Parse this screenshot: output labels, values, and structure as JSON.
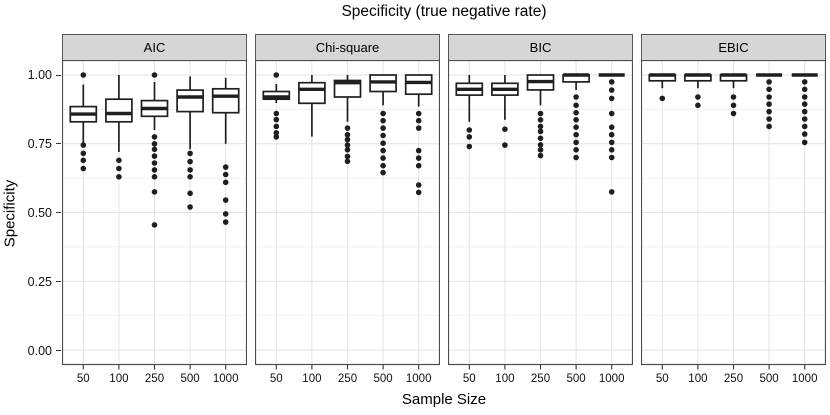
{
  "title": "Specificity (true negative rate)",
  "colors": {
    "box": "#1f1f1f",
    "panel_border": "#4d4d4d",
    "grid_major": "#e2e2e2",
    "grid_minor": "#f1f1f1",
    "strip_fill": "#d6d6d6",
    "strip_border": "#565656",
    "tick_mark": "#333333",
    "text": "#000000"
  },
  "chart_data": {
    "type": "boxplot",
    "faceted": true,
    "title": "Specificity (true negative rate)",
    "xlabel": "Sample Size",
    "ylabel": "Specificity",
    "ylim": [
      0,
      1
    ],
    "grid": "on",
    "legend": "none",
    "y_tick_labels": [
      "1.00",
      "0.75",
      "0.50",
      "0.25",
      "0.00"
    ],
    "y_major_gridlines": [
      0,
      0.25,
      0.5,
      0.75,
      1.0
    ],
    "y_minor_gridlines": [
      0.125,
      0.375,
      0.625,
      0.875
    ],
    "categories": [
      "50",
      "100",
      "250",
      "500",
      "1000"
    ],
    "facets": [
      {
        "label": "AIC",
        "boxes": [
          {
            "whisker_low": 0.75,
            "q1": 0.83,
            "median": 0.858,
            "q3": 0.885,
            "whisker_high": 0.965,
            "outliers": [
              1.0,
              0.745,
              0.715,
              0.69,
              0.66
            ]
          },
          {
            "whisker_low": 0.72,
            "q1": 0.83,
            "median": 0.86,
            "q3": 0.912,
            "whisker_high": 1.0,
            "outliers": [
              0.69,
              0.66,
              0.63
            ]
          },
          {
            "whisker_low": 0.8,
            "q1": 0.85,
            "median": 0.878,
            "q3": 0.907,
            "whisker_high": 0.975,
            "outliers": [
              1.0,
              0.775,
              0.75,
              0.73,
              0.705,
              0.68,
              0.655,
              0.63,
              0.575,
              0.455
            ]
          },
          {
            "whisker_low": 0.73,
            "q1": 0.867,
            "median": 0.92,
            "q3": 0.945,
            "whisker_high": 0.995,
            "outliers": [
              0.715,
              0.685,
              0.655,
              0.63,
              0.57,
              0.52
            ]
          },
          {
            "whisker_low": 0.75,
            "q1": 0.863,
            "median": 0.923,
            "q3": 0.95,
            "whisker_high": 0.99,
            "outliers": [
              0.665,
              0.638,
              0.61,
              0.545,
              0.495,
              0.465
            ]
          }
        ]
      },
      {
        "label": "Chi-square",
        "boxes": [
          {
            "whisker_low": 0.898,
            "q1": 0.912,
            "median": 0.92,
            "q3": 0.94,
            "whisker_high": 0.967,
            "outliers": [
              1.0,
              0.86,
              0.838,
              0.813,
              0.79,
              0.775
            ]
          },
          {
            "whisker_low": 0.776,
            "q1": 0.897,
            "median": 0.948,
            "q3": 0.972,
            "whisker_high": 1.0,
            "outliers": []
          },
          {
            "whisker_low": 0.83,
            "q1": 0.92,
            "median": 0.972,
            "q3": 0.98,
            "whisker_high": 1.0,
            "outliers": [
              0.807,
              0.783,
              0.765,
              0.745,
              0.728,
              0.704,
              0.686
            ]
          },
          {
            "whisker_low": 0.89,
            "q1": 0.94,
            "median": 0.975,
            "q3": 1.0,
            "whisker_high": 1.0,
            "outliers": [
              0.86,
              0.834,
              0.807,
              0.78,
              0.752,
              0.725,
              0.698,
              0.67,
              0.645
            ]
          },
          {
            "whisker_low": 0.885,
            "q1": 0.93,
            "median": 0.973,
            "q3": 1.0,
            "whisker_high": 1.0,
            "outliers": [
              0.86,
              0.834,
              0.807,
              0.725,
              0.698,
              0.67,
              0.6,
              0.573
            ]
          }
        ]
      },
      {
        "label": "BIC",
        "boxes": [
          {
            "whisker_low": 0.83,
            "q1": 0.927,
            "median": 0.948,
            "q3": 0.97,
            "whisker_high": 1.0,
            "outliers": [
              0.8,
              0.775,
              0.74
            ]
          },
          {
            "whisker_low": 0.837,
            "q1": 0.927,
            "median": 0.948,
            "q3": 0.97,
            "whisker_high": 1.0,
            "outliers": [
              0.803,
              0.745
            ]
          },
          {
            "whisker_low": 0.89,
            "q1": 0.946,
            "median": 0.976,
            "q3": 1.0,
            "whisker_high": 1.0,
            "outliers": [
              0.86,
              0.837,
              0.813,
              0.795,
              0.77,
              0.746,
              0.728,
              0.707
            ]
          },
          {
            "whisker_low": 0.945,
            "q1": 0.975,
            "median": 1.0,
            "q3": 1.0,
            "whisker_high": 1.0,
            "outliers": [
              0.92,
              0.89,
              0.863,
              0.837,
              0.81,
              0.783,
              0.755,
              0.728,
              0.7
            ]
          },
          {
            "whisker_low": 1.0,
            "q1": 1.0,
            "median": 1.0,
            "q3": 1.0,
            "whisker_high": 1.0,
            "outliers": [
              0.975,
              0.945,
              0.915,
              0.86,
              0.81,
              0.783,
              0.755,
              0.728,
              0.7,
              0.575
            ]
          }
        ]
      },
      {
        "label": "EBIC",
        "boxes": [
          {
            "whisker_low": 0.952,
            "q1": 0.979,
            "median": 1.0,
            "q3": 1.0,
            "whisker_high": 1.0,
            "outliers": [
              0.915
            ]
          },
          {
            "whisker_low": 0.952,
            "q1": 0.979,
            "median": 1.0,
            "q3": 1.0,
            "whisker_high": 1.0,
            "outliers": [
              0.92,
              0.89
            ]
          },
          {
            "whisker_low": 0.952,
            "q1": 0.979,
            "median": 1.0,
            "q3": 1.0,
            "whisker_high": 1.0,
            "outliers": [
              0.92,
              0.89,
              0.86
            ]
          },
          {
            "whisker_low": 1.0,
            "q1": 1.0,
            "median": 1.0,
            "q3": 1.0,
            "whisker_high": 1.0,
            "outliers": [
              0.975,
              0.948,
              0.92,
              0.894,
              0.867,
              0.84,
              0.813
            ]
          },
          {
            "whisker_low": 1.0,
            "q1": 1.0,
            "median": 1.0,
            "q3": 1.0,
            "whisker_high": 1.0,
            "outliers": [
              0.975,
              0.948,
              0.92,
              0.894,
              0.867,
              0.84,
              0.813,
              0.785,
              0.755
            ]
          }
        ]
      }
    ]
  }
}
